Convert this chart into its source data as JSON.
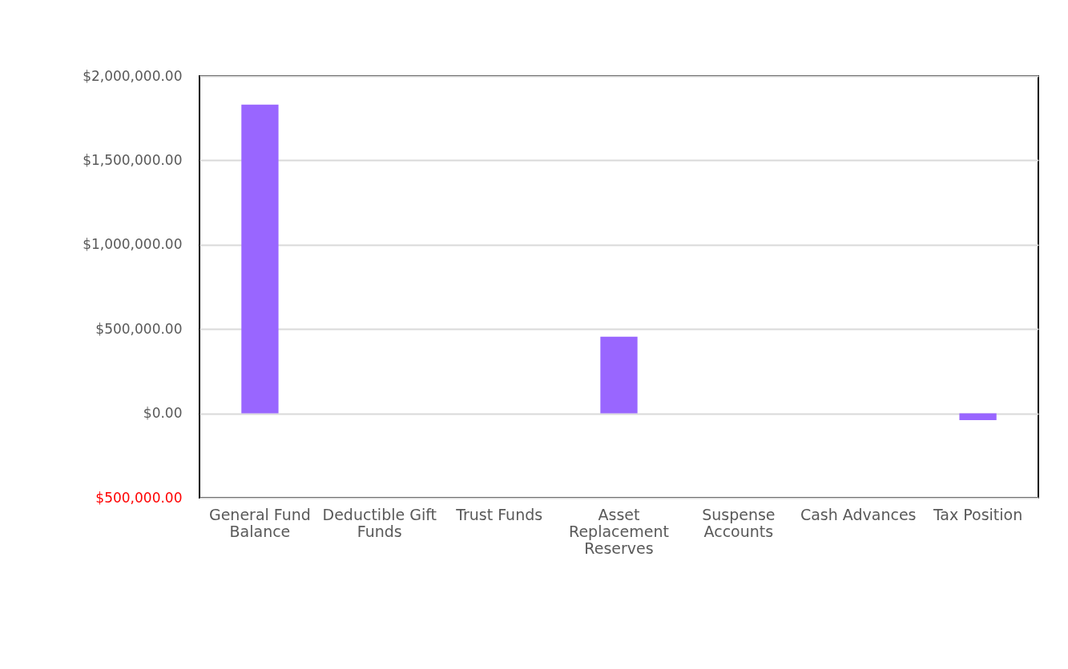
{
  "chart_data": {
    "type": "bar",
    "categories": [
      "General Fund Balance",
      "Deductible Gift Funds",
      "Trust Funds",
      "Asset Replacement Reserves",
      "Suspense Accounts",
      "Cash Advances",
      "Tax Position"
    ],
    "values": [
      1830000,
      0,
      0,
      455000,
      0,
      0,
      -40000
    ],
    "color": "#9966ff",
    "ylim": [
      -500000,
      2000000
    ],
    "yticks": [
      {
        "value": -500000,
        "label": "$500,000.00"
      },
      {
        "value": 0,
        "label": "$0.00"
      },
      {
        "value": 500000,
        "label": "$500,000.00"
      },
      {
        "value": 1000000,
        "label": "$1,000,000.00"
      },
      {
        "value": 1500000,
        "label": "$1,500,000.00"
      },
      {
        "value": 2000000,
        "label": "$2,000,000.00"
      }
    ],
    "grid": "y"
  }
}
